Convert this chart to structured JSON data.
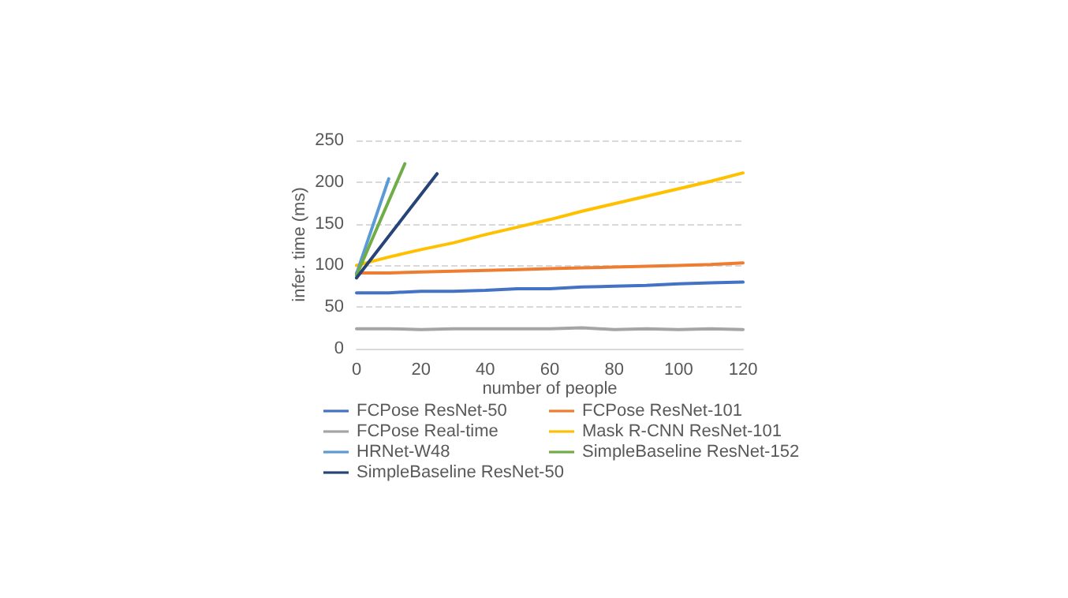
{
  "chart_data": {
    "type": "line",
    "xlabel": "number of people",
    "ylabel": "infer. time (ms)",
    "xlim": [
      0,
      120
    ],
    "xticks": [
      0,
      20,
      40,
      60,
      80,
      100,
      120
    ],
    "ylim": [
      0,
      250
    ],
    "yticks": [
      0,
      50,
      100,
      150,
      200,
      250
    ],
    "grid": "y",
    "legend": "bottom",
    "marker": "none",
    "line_style": "solid",
    "series": [
      {
        "name": "FCPose ResNet-50",
        "color": "#4472c4",
        "x": [
          0,
          10,
          20,
          30,
          40,
          50,
          60,
          70,
          80,
          90,
          100,
          110,
          120
        ],
        "values": [
          67,
          67,
          69,
          69,
          70,
          72,
          72,
          74,
          75,
          76,
          78,
          79,
          80
        ]
      },
      {
        "name": "FCPose ResNet-101",
        "color": "#ed7d31",
        "x": [
          0,
          10,
          20,
          30,
          40,
          50,
          60,
          70,
          80,
          90,
          100,
          110,
          120
        ],
        "values": [
          91,
          91,
          92,
          93,
          94,
          95,
          96,
          97,
          98,
          99,
          100,
          101,
          103
        ]
      },
      {
        "name": "FCPose Real-time",
        "color": "#a5a5a5",
        "x": [
          0,
          10,
          20,
          30,
          40,
          50,
          60,
          70,
          80,
          90,
          100,
          110,
          120
        ],
        "values": [
          24,
          24,
          23,
          24,
          24,
          24,
          24,
          25,
          23,
          24,
          23,
          24,
          23
        ]
      },
      {
        "name": "Mask R-CNN ResNet-101",
        "color": "#ffc000",
        "x": [
          0,
          10,
          20,
          30,
          40,
          50,
          60,
          70,
          80,
          90,
          100,
          110,
          120
        ],
        "values": [
          100,
          110,
          119,
          127,
          137,
          146,
          155,
          165,
          174,
          183,
          192,
          201,
          211
        ]
      },
      {
        "name": "HRNet-W48",
        "color": "#5b9bd5",
        "x": [
          0,
          10
        ],
        "values": [
          90,
          204
        ]
      },
      {
        "name": "SimpleBaseline ResNet-152",
        "color": "#70ad47",
        "x": [
          0,
          15
        ],
        "values": [
          88,
          222
        ]
      },
      {
        "name": "SimpleBaseline ResNet-50",
        "color": "#264478",
        "x": [
          0,
          25
        ],
        "values": [
          85,
          210
        ]
      }
    ]
  }
}
